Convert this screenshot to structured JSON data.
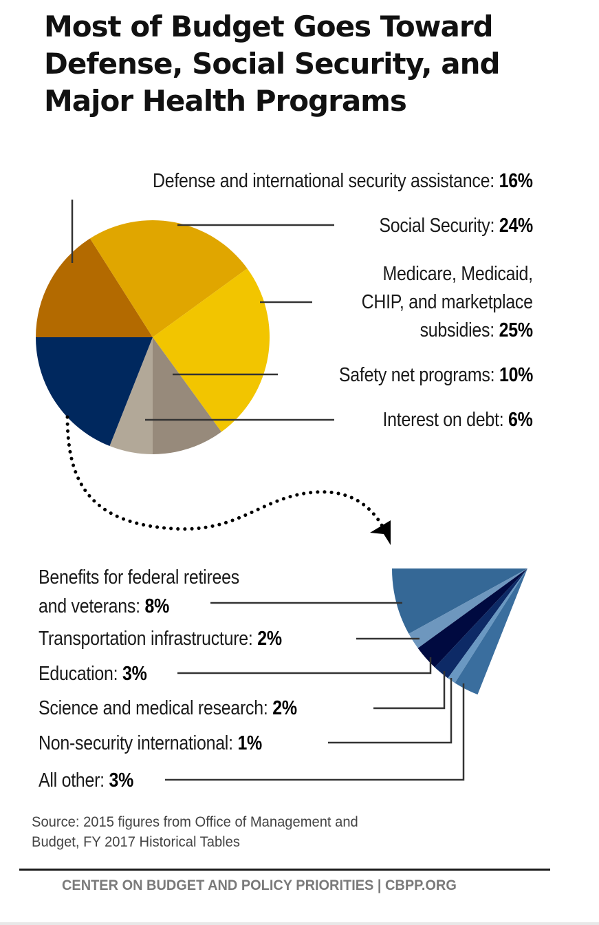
{
  "chart_data": {
    "type": "pie",
    "title": "Most of Budget Goes Toward Defense, Social Security, and Major Health Programs",
    "unit": "%",
    "main_pie": {
      "slices": [
        {
          "label": "Defense and international security assistance:",
          "value": 16,
          "value_label": "16%",
          "color": "#B36A00"
        },
        {
          "label": "Social Security:",
          "value": 24,
          "value_label": "24%",
          "color": "#E0A600"
        },
        {
          "label_lines": [
            "Medicare, Medicaid,",
            "CHIP, and marketplace",
            "subsidies:"
          ],
          "value": 25,
          "value_label": "25%",
          "color": "#F2C500"
        },
        {
          "label": "Safety net programs:",
          "value": 10,
          "value_label": "10%",
          "color": "#978A7B"
        },
        {
          "label": "Interest on debt:",
          "value": 6,
          "value_label": "6%",
          "color": "#B2A898"
        },
        {
          "label": "",
          "value": 19,
          "value_label": "",
          "color": "#00285E"
        }
      ]
    },
    "breakout_pie": {
      "total": 19,
      "slices": [
        {
          "label_lines": [
            "Benefits for federal retirees",
            "and veterans:"
          ],
          "value": 8,
          "value_label": "8%",
          "color": "#356896"
        },
        {
          "label": "Transportation infrastructure:",
          "value": 2,
          "value_label": "2%",
          "color": "#6E97BE"
        },
        {
          "label": "Education:",
          "value": 3,
          "value_label": "3%",
          "color": "#000A40"
        },
        {
          "label": "Science and medical research:",
          "value": 2,
          "value_label": "2%",
          "color": "#0D2A66"
        },
        {
          "label": "Non-security international:",
          "value": 1,
          "value_label": "1%",
          "color": "#6A98C2"
        },
        {
          "label": "All other:",
          "value": 3,
          "value_label": "3%",
          "color": "#3A6E9E"
        }
      ]
    },
    "source_lines": [
      "Source: 2015 figures from Office of Management and",
      "Budget, FY 2017 Historical Tables"
    ],
    "credit": "CENTER ON BUDGET AND POLICY PRIORITIES | CBPP.ORG"
  },
  "title_lines": [
    "Most of Budget Goes Toward",
    "Defense, Social Security, and",
    "Major Health Programs"
  ]
}
